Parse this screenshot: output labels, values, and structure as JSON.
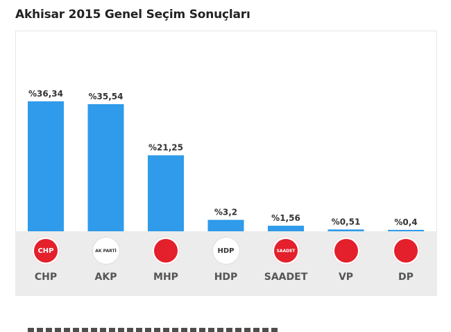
{
  "title": "Akhisar 2015 Genel Seçim Sonuçları",
  "chart_data": {
    "type": "bar",
    "categories": [
      "CHP",
      "AKP",
      "MHP",
      "HDP",
      "SAADET",
      "VP",
      "DP"
    ],
    "values": [
      36.34,
      35.54,
      21.25,
      3.2,
      1.56,
      0.51,
      0.4
    ],
    "value_labels": [
      "%36,34",
      "%35,54",
      "%21,25",
      "%3,2",
      "%1,56",
      "%0,51",
      "%0,4"
    ],
    "ylim": [
      0,
      40
    ],
    "grid": false,
    "bar_color": "#2f9bea"
  },
  "logos": [
    {
      "name": "chp-logo",
      "text": "CHP",
      "bg": "#e3202b"
    },
    {
      "name": "akp-logo",
      "text": "AK PARTİ",
      "bg": "#ffffff"
    },
    {
      "name": "mhp-logo",
      "text": "",
      "bg": "#e3202b"
    },
    {
      "name": "hdp-logo",
      "text": "HDP",
      "bg": "#ffffff"
    },
    {
      "name": "saadet-logo",
      "text": "SAADET",
      "bg": "#e3202b"
    },
    {
      "name": "vp-logo",
      "text": "",
      "bg": "#e3202b"
    },
    {
      "name": "dp-logo",
      "text": "",
      "bg": "#e3202b"
    }
  ]
}
